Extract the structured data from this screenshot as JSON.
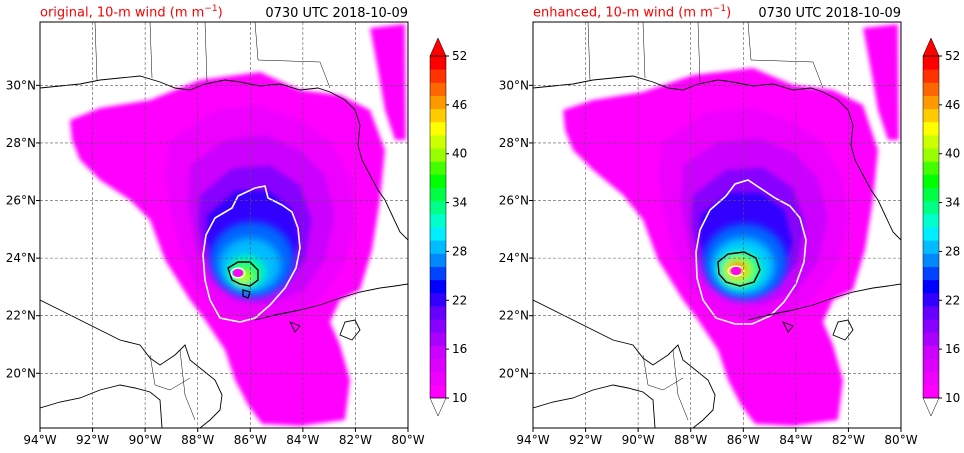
{
  "panels": [
    {
      "title": "original, 10-m wind (m m",
      "title_sup": "−1",
      "title_close": ")",
      "time": "0730 UTC 2018-10-09"
    },
    {
      "title": "enhanced, 10-m wind (m m",
      "title_sup": "−1",
      "title_close": ")",
      "time": "0730 UTC 2018-10-09"
    }
  ],
  "lon_ticks": [
    "94°W",
    "92°W",
    "90°W",
    "88°W",
    "86°W",
    "84°W",
    "82°W",
    "80°W"
  ],
  "lat_ticks": [
    "20°N",
    "22°N",
    "24°N",
    "26°N",
    "28°N",
    "30°N"
  ],
  "lon_values": [
    -94,
    -92,
    -90,
    -88,
    -86,
    -84,
    -82,
    -80
  ],
  "lat_values": [
    20,
    22,
    24,
    26,
    28,
    30
  ],
  "extent": {
    "lon": [
      -94,
      -80
    ],
    "lat": [
      18.1,
      32.2
    ]
  },
  "colorbar": {
    "tick_labels": [
      "10",
      "16",
      "22",
      "28",
      "34",
      "40",
      "46",
      "52"
    ],
    "ticks": [
      10,
      16,
      22,
      28,
      34,
      40,
      46,
      52
    ],
    "range": [
      10,
      52
    ],
    "colors": [
      "#ff00ff",
      "#ee00ff",
      "#dd00ff",
      "#cc00ff",
      "#aa00ff",
      "#8800ff",
      "#6600ff",
      "#3300ff",
      "#0000ff",
      "#0044ff",
      "#0088ff",
      "#00bbff",
      "#00eeff",
      "#00ffcc",
      "#00ff88",
      "#00ff44",
      "#00ff00",
      "#44ff00",
      "#99ff00",
      "#ccff00",
      "#ffff00",
      "#ffcc00",
      "#ff9900",
      "#ff6600",
      "#ff3300",
      "#ff0000"
    ],
    "extend": "both"
  },
  "colors": {
    "title": "#ff0000",
    "grid": "#555555",
    "coast": "#000000",
    "contour_white": "#ffffff",
    "contour_black": "#000000"
  }
}
